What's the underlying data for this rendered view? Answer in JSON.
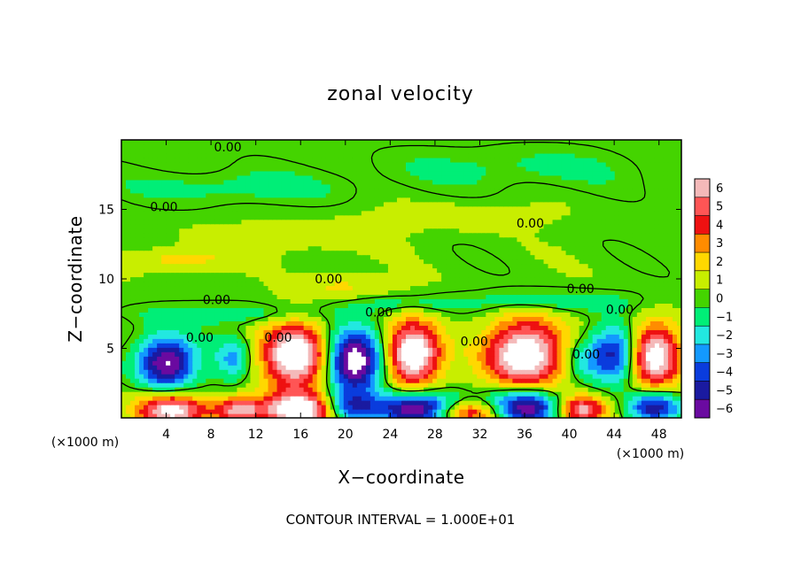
{
  "chart_data": {
    "type": "heatmap",
    "title": "zonal velocity",
    "xlabel": "X−coordinate",
    "ylabel": "Z−coordinate",
    "x_unit_left": "(×1000 m)",
    "x_unit_right": "(×1000 m)",
    "xlim": [
      0,
      50
    ],
    "ylim": [
      0,
      20
    ],
    "x_ticks": [
      4,
      8,
      12,
      16,
      20,
      24,
      28,
      32,
      36,
      40,
      44,
      48
    ],
    "x_tick_labels": [
      "4",
      "8",
      "12",
      "16",
      "20",
      "24",
      "28",
      "32",
      "36",
      "40",
      "44",
      "48"
    ],
    "y_ticks": [
      5,
      10,
      15
    ],
    "y_tick_labels": [
      "5",
      "10",
      "15"
    ],
    "colorbar": {
      "values": [
        6,
        5,
        4,
        3,
        2,
        1,
        0,
        -1,
        -2,
        -3,
        -4,
        -5,
        -6
      ],
      "labels": [
        "6",
        "5",
        "4",
        "3",
        "2",
        "1",
        "0",
        "−1",
        "−2",
        "−3",
        "−4",
        "−5",
        "−6"
      ],
      "colors": [
        "#f4b9b9",
        "#ff5555",
        "#ee1111",
        "#ff8c00",
        "#ffd800",
        "#c8ee00",
        "#44d400",
        "#00ee77",
        "#22e8e0",
        "#1399ff",
        "#0a3cdd",
        "#1a1aa0",
        "#6a0aa0"
      ]
    },
    "contour_labels": [
      {
        "x": 9.5,
        "z": 19.5,
        "text": "0.00"
      },
      {
        "x": 3.8,
        "z": 15.2,
        "text": "0.00"
      },
      {
        "x": 36.5,
        "z": 14.0,
        "text": "0.00"
      },
      {
        "x": 18.5,
        "z": 10.0,
        "text": "0.00"
      },
      {
        "x": 8.5,
        "z": 8.5,
        "text": "0.00"
      },
      {
        "x": 41.0,
        "z": 9.3,
        "text": "0.00"
      },
      {
        "x": 23.0,
        "z": 7.6,
        "text": "0.00"
      },
      {
        "x": 44.5,
        "z": 7.8,
        "text": "0.00"
      },
      {
        "x": 7.0,
        "z": 5.8,
        "text": "0.00"
      },
      {
        "x": 14.0,
        "z": 5.8,
        "text": "0.00"
      },
      {
        "x": 31.5,
        "z": 5.5,
        "text": "0.00"
      },
      {
        "x": 41.5,
        "z": 4.6,
        "text": "0.00"
      }
    ],
    "features": [
      {
        "x": 4.0,
        "z": 4.0,
        "amp": -7,
        "rx": 2.6,
        "rz": 1.9
      },
      {
        "x": 4.5,
        "z": 0.6,
        "amp": 7,
        "rx": 3.0,
        "rz": 1.2
      },
      {
        "x": 10.5,
        "z": 0.6,
        "amp": 6,
        "rx": 2.3,
        "rz": 0.9
      },
      {
        "x": 10.0,
        "z": 4.3,
        "amp": -3,
        "rx": 1.6,
        "rz": 1.5
      },
      {
        "x": 15.5,
        "z": 4.5,
        "amp": 8,
        "rx": 2.9,
        "rz": 2.3
      },
      {
        "x": 15.8,
        "z": 0.6,
        "amp": 8,
        "rx": 2.9,
        "rz": 1.2
      },
      {
        "x": 20.8,
        "z": 4.1,
        "amp": -8,
        "rx": 2.5,
        "rz": 2.2
      },
      {
        "x": 20.5,
        "z": 0.8,
        "amp": -4,
        "rx": 2.2,
        "rz": 1.1
      },
      {
        "x": 26.0,
        "z": 4.6,
        "amp": 8,
        "rx": 2.4,
        "rz": 2.3
      },
      {
        "x": 26.5,
        "z": 0.7,
        "amp": -7,
        "rx": 3.6,
        "rz": 1.2
      },
      {
        "x": 31.0,
        "z": 0.4,
        "amp": 5,
        "rx": 3.0,
        "rz": 0.8
      },
      {
        "x": 36.0,
        "z": 4.6,
        "amp": 8,
        "rx": 3.5,
        "rz": 2.5
      },
      {
        "x": 36.0,
        "z": 0.8,
        "amp": -7,
        "rx": 3.2,
        "rz": 1.3
      },
      {
        "x": 41.0,
        "z": 4.2,
        "amp": -2,
        "rx": 1.6,
        "rz": 1.5
      },
      {
        "x": 41.0,
        "z": 0.6,
        "amp": 6,
        "rx": 2.2,
        "rz": 1.0
      },
      {
        "x": 44.2,
        "z": 4.6,
        "amp": -6,
        "rx": 2.4,
        "rz": 2.0
      },
      {
        "x": 47.5,
        "z": 4.5,
        "amp": 8,
        "rx": 2.4,
        "rz": 2.3
      },
      {
        "x": 47.5,
        "z": 0.8,
        "amp": -6,
        "rx": 2.3,
        "rz": 1.1
      },
      {
        "x": 5.0,
        "z": 11.4,
        "amp": 1.8,
        "rx": 4.5,
        "rz": 0.8
      },
      {
        "x": 20.0,
        "z": 9.5,
        "amp": 1.5,
        "rx": 4.0,
        "rz": 0.9
      },
      {
        "x": 15.0,
        "z": 13.0,
        "amp": 0.9,
        "rx": 8.0,
        "rz": 1.2
      },
      {
        "x": 30.0,
        "z": 14.5,
        "amp": 0.9,
        "rx": 8.0,
        "rz": 1.0
      },
      {
        "x": 10.0,
        "z": 16.6,
        "amp": -1.2,
        "rx": 10.0,
        "rz": 1.2
      },
      {
        "x": 35.0,
        "z": 18.0,
        "amp": -1.0,
        "rx": 12.0,
        "rz": 1.5
      },
      {
        "x": 10.0,
        "z": 7.5,
        "amp": -1.6,
        "rx": 8.0,
        "rz": 0.7
      },
      {
        "x": 38.0,
        "z": 8.4,
        "amp": -1.7,
        "rx": 8.0,
        "rz": 0.8
      },
      {
        "x": 25.0,
        "z": 8.2,
        "amp": -1.3,
        "rx": 5.0,
        "rz": 0.6
      }
    ]
  },
  "footer": {
    "contour_interval": "CONTOUR INTERVAL = 1.000E+01"
  }
}
